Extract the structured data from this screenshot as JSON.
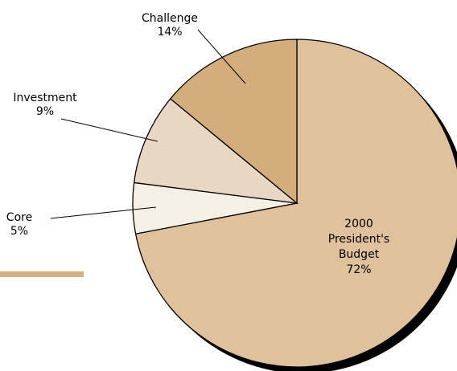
{
  "chart_data": {
    "type": "pie",
    "slices": [
      {
        "name": "2000 President's Budget",
        "value": 72,
        "pct_label": "72%",
        "color": "#dfc29c"
      },
      {
        "name": "Core",
        "value": 5,
        "pct_label": "5%",
        "color": "#f6efe3"
      },
      {
        "name": "Investment",
        "value": 9,
        "pct_label": "9%",
        "color": "#e8d7c2"
      },
      {
        "name": "Challenge",
        "value": 14,
        "pct_label": "14%",
        "color": "#d4ad7c"
      }
    ],
    "labels": {
      "budget": [
        "2000",
        "President's",
        "Budget",
        "72%"
      ],
      "core": [
        "Core",
        "5%"
      ],
      "investment": [
        "Investment",
        "9%"
      ],
      "challenge": [
        "Challenge",
        "14%"
      ]
    },
    "start_angle_deg": 0,
    "direction": "clockwise",
    "shadow_color": "#000000",
    "accent_bar_color": "#d2b07f"
  }
}
